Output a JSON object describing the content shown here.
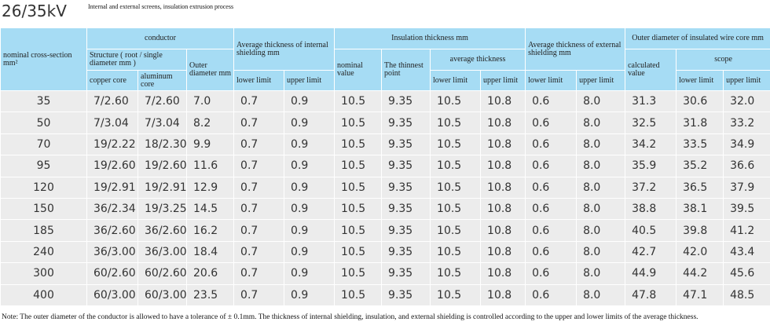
{
  "title": "26/35kV",
  "subtitle": "Internal and external screens, insulation extrusion process",
  "table": {
    "header": [
      [
        "nominal cross-section mm²",
        "conductor",
        "Average thickness of internal shielding mm",
        "Insulation thickness mm",
        "Average thickness of external shielding mm",
        "Outer diameter of insulated wire core mm"
      ],
      [
        "Structure ( root / single diameter mm )",
        "Outer diameter mm",
        "nominal value",
        "The thinnest point",
        "average thickness",
        "calculated value",
        "scope"
      ],
      [
        "copper core",
        "aluminum core",
        "lower limit",
        "upper limit",
        "lower limit",
        "upper limit",
        "lower limit",
        "upper limit",
        "lower limit",
        "upper limit"
      ]
    ],
    "rows": [
      [
        "35",
        "7/2.60",
        "7/2.60",
        "7.0",
        "0.7",
        "0.9",
        "10.5",
        "9.35",
        "10.5",
        "10.8",
        "0.6",
        "8.0",
        "31.3",
        "30.6",
        "32.0"
      ],
      [
        "50",
        "7/3.04",
        "7/3.04",
        "8.2",
        "0.7",
        "0.9",
        "10.5",
        "9.35",
        "10.5",
        "10.8",
        "0.6",
        "8.0",
        "32.5",
        "31.8",
        "33.2"
      ],
      [
        "70",
        "19/2.22",
        "18/2.30",
        "9.9",
        "0.7",
        "0.9",
        "10.5",
        "9.35",
        "10.5",
        "10.8",
        "0.6",
        "8.0",
        "34.2",
        "33.5",
        "34.9"
      ],
      [
        "95",
        "19/2.60",
        "19/2.60",
        "11.6",
        "0.7",
        "0.9",
        "10.5",
        "9.35",
        "10.5",
        "10.8",
        "0.6",
        "8.0",
        "35.9",
        "35.2",
        "36.6"
      ],
      [
        "120",
        "19/2.91",
        "19/2.91",
        "12.9",
        "0.7",
        "0.9",
        "10.5",
        "9.35",
        "10.5",
        "10.8",
        "0.6",
        "8.0",
        "37.2",
        "36.5",
        "37.9"
      ],
      [
        "150",
        "36/2.34",
        "19/3.25",
        "14.5",
        "0.7",
        "0.9",
        "10.5",
        "9.35",
        "10.5",
        "10.8",
        "0.6",
        "8.0",
        "38.8",
        "38.1",
        "39.5"
      ],
      [
        "185",
        "36/2.60",
        "36/2.60",
        "16.2",
        "0.7",
        "0.9",
        "10.5",
        "9.35",
        "10.5",
        "10.8",
        "0.6",
        "8.0",
        "40.5",
        "39.8",
        "41.2"
      ],
      [
        "240",
        "36/3.00",
        "36/3.00",
        "18.4",
        "0.7",
        "0.9",
        "10.5",
        "9.35",
        "10.5",
        "10.8",
        "0.6",
        "8.0",
        "42.7",
        "42.0",
        "43.4"
      ],
      [
        "300",
        "60/2.60",
        "60/2.60",
        "20.6",
        "0.7",
        "0.9",
        "10.5",
        "9.35",
        "10.5",
        "10.8",
        "0.6",
        "8.0",
        "44.9",
        "44.2",
        "45.6"
      ],
      [
        "400",
        "60/3.00",
        "60/3.00",
        "23.5",
        "0.7",
        "0.9",
        "10.5",
        "9.35",
        "10.5",
        "10.8",
        "0.6",
        "8.0",
        "47.8",
        "47.1",
        "48.5"
      ]
    ]
  },
  "note": "Note: The outer diameter of the conductor is allowed to have a tolerance of ± 0.1mm. The thickness of internal shielding, insulation, and external shielding is controlled according to the upper and lower limits of the average thickness."
}
